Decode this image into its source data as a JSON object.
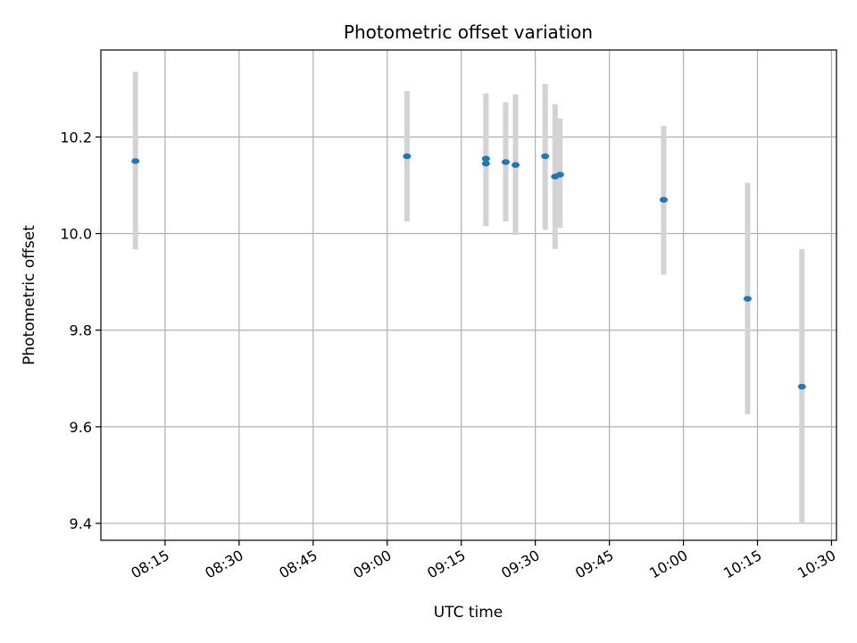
{
  "chart_data": {
    "type": "scatter",
    "title": "Photometric offset variation",
    "xlabel": "UTC time",
    "ylabel": "Photometric offset",
    "x_ticks": [
      "08:15",
      "08:30",
      "08:45",
      "09:00",
      "09:15",
      "09:30",
      "09:45",
      "10:00",
      "10:15",
      "10:30"
    ],
    "y_ticks": [
      9.4,
      9.6,
      9.8,
      10.0,
      10.2
    ],
    "xlim": [
      "08:02",
      "10:31"
    ],
    "ylim": [
      9.365,
      10.38
    ],
    "grid": true,
    "point_color": "#1f77b4",
    "errorbar_color": "#d3d3d3",
    "points": [
      {
        "x": "08:09",
        "y": 10.15,
        "yerr_low": 9.967,
        "yerr_high": 10.335
      },
      {
        "x": "09:04",
        "y": 10.16,
        "yerr_low": 10.025,
        "yerr_high": 10.295
      },
      {
        "x": "09:20",
        "y": 10.145,
        "yerr_low": 10.015,
        "yerr_high": 10.28
      },
      {
        "x": "09:20",
        "y": 10.155,
        "yerr_low": 10.022,
        "yerr_high": 10.29
      },
      {
        "x": "09:24",
        "y": 10.148,
        "yerr_low": 10.025,
        "yerr_high": 10.272
      },
      {
        "x": "09:26",
        "y": 10.142,
        "yerr_low": 9.997,
        "yerr_high": 10.288
      },
      {
        "x": "09:32",
        "y": 10.16,
        "yerr_low": 10.008,
        "yerr_high": 10.31
      },
      {
        "x": "09:34",
        "y": 10.118,
        "yerr_low": 9.968,
        "yerr_high": 10.268
      },
      {
        "x": "09:35",
        "y": 10.122,
        "yerr_low": 10.012,
        "yerr_high": 10.238
      },
      {
        "x": "09:56",
        "y": 10.07,
        "yerr_low": 9.915,
        "yerr_high": 10.223
      },
      {
        "x": "10:13",
        "y": 9.865,
        "yerr_low": 9.626,
        "yerr_high": 10.105
      },
      {
        "x": "10:24",
        "y": 9.683,
        "yerr_low": 9.4,
        "yerr_high": 9.968
      }
    ]
  }
}
